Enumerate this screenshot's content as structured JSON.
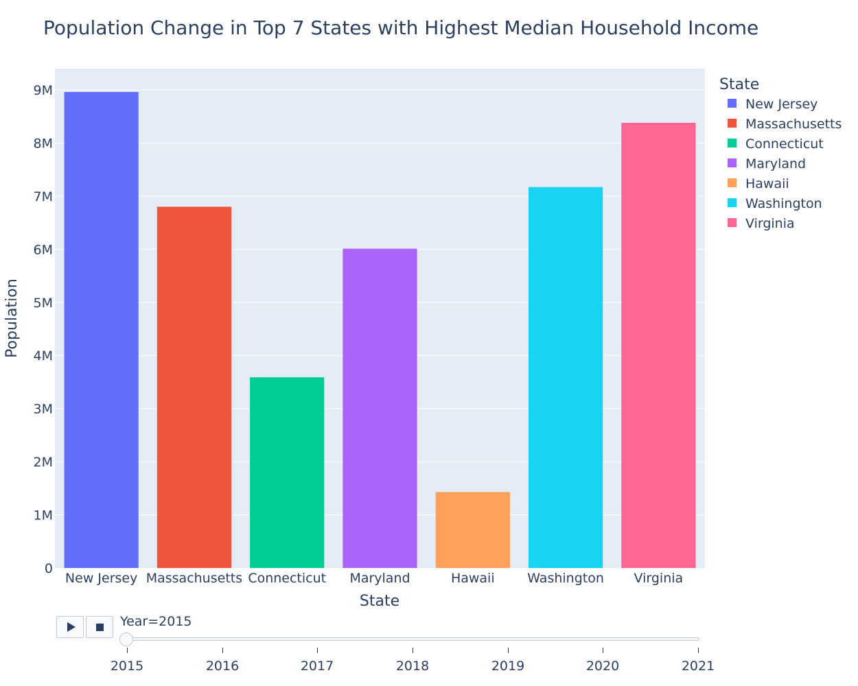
{
  "chart_data": {
    "type": "bar",
    "title": "Population Change in Top 7 States with Highest Median Household Income",
    "xlabel": "State",
    "ylabel": "Population",
    "categories": [
      "New Jersey",
      "Massachusetts",
      "Connecticut",
      "Maryland",
      "Hawaii",
      "Washington",
      "Virginia"
    ],
    "values": [
      8960000,
      6800000,
      3590000,
      6010000,
      1430000,
      7170000,
      8380000
    ],
    "colors": [
      "#636efa",
      "#ef553b",
      "#00cc96",
      "#ab63fa",
      "#ffa15a",
      "#19d3f3",
      "#ff6692"
    ],
    "ylim": [
      0,
      9400000
    ],
    "yticks": [
      0,
      1000000,
      2000000,
      3000000,
      4000000,
      5000000,
      6000000,
      7000000,
      8000000,
      9000000
    ],
    "ytick_labels": [
      "0",
      "1M",
      "2M",
      "3M",
      "4M",
      "5M",
      "6M",
      "7M",
      "8M",
      "9M"
    ],
    "grid": true,
    "plot_bgcolor": "#e5ecf6",
    "legend": {
      "title": "State",
      "placement": "right",
      "items": [
        "New Jersey",
        "Massachusetts",
        "Connecticut",
        "Maryland",
        "Hawaii",
        "Washington",
        "Virginia"
      ]
    }
  },
  "controls": {
    "play_icon": "play-icon",
    "stop_icon": "stop-icon",
    "slider_label": "Year=2015",
    "current_year": "2015",
    "years": [
      "2015",
      "2016",
      "2017",
      "2018",
      "2019",
      "2020",
      "2021"
    ]
  }
}
